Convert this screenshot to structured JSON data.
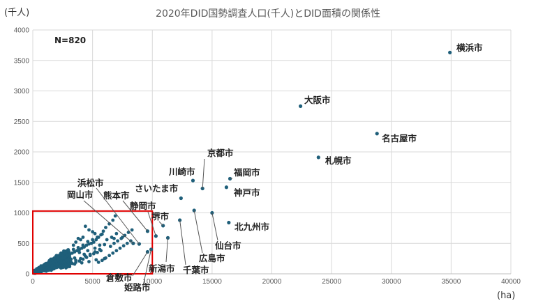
{
  "chart_data": {
    "type": "scatter",
    "title": "2020年DID国勢調査人口(千人)とDID面積の関係性",
    "ylabel_unit": "(千人)",
    "xlabel_unit": "(ha)",
    "annotation": "N=820",
    "xlim": [
      0,
      40000
    ],
    "ylim": [
      0,
      4000
    ],
    "xticks": [
      0,
      5000,
      10000,
      15000,
      20000,
      25000,
      30000,
      35000,
      40000
    ],
    "yticks": [
      0,
      500,
      1000,
      1500,
      2000,
      2500,
      3000,
      3500,
      4000
    ],
    "grid": true,
    "highlight_box": {
      "x": [
        0,
        10000
      ],
      "y": [
        0,
        1030
      ],
      "color": "#e00000"
    },
    "point_color": "#1f5f7a",
    "labeled_points": [
      {
        "name": "横浜市",
        "x": 34900,
        "y": 3630
      },
      {
        "name": "大阪市",
        "x": 22400,
        "y": 2750
      },
      {
        "name": "名古屋市",
        "x": 28800,
        "y": 2300
      },
      {
        "name": "札幌市",
        "x": 23900,
        "y": 1910
      },
      {
        "name": "京都市",
        "x": 14200,
        "y": 1400
      },
      {
        "name": "川崎市",
        "x": 13400,
        "y": 1530
      },
      {
        "name": "福岡市",
        "x": 16500,
        "y": 1560
      },
      {
        "name": "神戸市",
        "x": 16200,
        "y": 1420
      },
      {
        "name": "さいたま市",
        "x": 12400,
        "y": 1240
      },
      {
        "name": "北九州市",
        "x": 16400,
        "y": 840
      },
      {
        "name": "仙台市",
        "x": 15000,
        "y": 1000
      },
      {
        "name": "広島市",
        "x": 13500,
        "y": 1040
      },
      {
        "name": "千葉市",
        "x": 12300,
        "y": 880
      },
      {
        "name": "新潟市",
        "x": 11300,
        "y": 590
      },
      {
        "name": "堺市",
        "x": 10900,
        "y": 790
      },
      {
        "name": "静岡市",
        "x": 10300,
        "y": 620
      },
      {
        "name": "熊本市",
        "x": 9600,
        "y": 700
      },
      {
        "name": "浜松市",
        "x": 8900,
        "y": 490
      },
      {
        "name": "岡山市",
        "x": 8400,
        "y": 500
      },
      {
        "name": "倉敷市",
        "x": 9600,
        "y": 360
      },
      {
        "name": "姫路市",
        "x": 9900,
        "y": 400
      }
    ],
    "points": [
      [
        700,
        90
      ],
      [
        900,
        130
      ],
      [
        1100,
        150
      ],
      [
        1300,
        170
      ],
      [
        1500,
        180
      ],
      [
        1700,
        200
      ],
      [
        1900,
        210
      ],
      [
        2100,
        230
      ],
      [
        2300,
        250
      ],
      [
        2500,
        260
      ],
      [
        2700,
        280
      ],
      [
        2900,
        300
      ],
      [
        3100,
        320
      ],
      [
        3300,
        340
      ],
      [
        3500,
        360
      ],
      [
        3700,
        380
      ],
      [
        3900,
        400
      ],
      [
        4100,
        420
      ],
      [
        4300,
        440
      ],
      [
        4500,
        470
      ],
      [
        4700,
        490
      ],
      [
        4900,
        500
      ],
      [
        5100,
        520
      ],
      [
        5300,
        560
      ],
      [
        5500,
        600
      ],
      [
        5700,
        640
      ],
      [
        5900,
        700
      ],
      [
        6100,
        760
      ],
      [
        6400,
        820
      ],
      [
        6700,
        880
      ],
      [
        6900,
        950
      ],
      [
        4400,
        780
      ],
      [
        4700,
        720
      ],
      [
        5000,
        690
      ],
      [
        5200,
        660
      ],
      [
        3800,
        580
      ],
      [
        4000,
        560
      ],
      [
        4200,
        600
      ],
      [
        3600,
        520
      ],
      [
        3400,
        470
      ],
      [
        6100,
        260
      ],
      [
        6400,
        300
      ],
      [
        6700,
        340
      ],
      [
        7000,
        380
      ],
      [
        7300,
        420
      ],
      [
        7600,
        460
      ],
      [
        7900,
        500
      ],
      [
        8200,
        540
      ],
      [
        5800,
        220
      ],
      [
        5500,
        190
      ],
      [
        3000,
        150
      ],
      [
        3300,
        170
      ],
      [
        3600,
        190
      ],
      [
        3900,
        210
      ],
      [
        4200,
        240
      ],
      [
        4500,
        270
      ],
      [
        4800,
        300
      ],
      [
        5100,
        330
      ],
      [
        5400,
        350
      ],
      [
        5700,
        380
      ],
      [
        2000,
        110
      ],
      [
        2400,
        130
      ],
      [
        2800,
        160
      ],
      [
        3200,
        190
      ],
      [
        3600,
        220
      ],
      [
        4000,
        250
      ],
      [
        4400,
        290
      ],
      [
        4800,
        320
      ],
      [
        5200,
        360
      ],
      [
        5600,
        400
      ],
      [
        2200,
        300
      ],
      [
        2600,
        330
      ],
      [
        3000,
        370
      ],
      [
        3400,
        400
      ],
      [
        3800,
        430
      ],
      [
        4200,
        470
      ],
      [
        4600,
        530
      ],
      [
        5000,
        560
      ],
      [
        5400,
        600
      ],
      [
        5800,
        650
      ],
      [
        1500,
        240
      ],
      [
        1800,
        260
      ],
      [
        2100,
        280
      ],
      [
        2400,
        310
      ],
      [
        2700,
        340
      ],
      [
        1200,
        90
      ],
      [
        1600,
        120
      ],
      [
        2000,
        150
      ],
      [
        2600,
        200
      ],
      [
        3200,
        240
      ],
      [
        6500,
        450
      ],
      [
        6800,
        500
      ],
      [
        7100,
        540
      ],
      [
        7400,
        580
      ],
      [
        7700,
        630
      ],
      [
        8000,
        680
      ],
      [
        8300,
        720
      ],
      [
        6200,
        560
      ],
      [
        6600,
        600
      ],
      [
        7000,
        660
      ],
      [
        2800,
        220
      ],
      [
        3500,
        260
      ],
      [
        4300,
        320
      ],
      [
        5200,
        420
      ],
      [
        6000,
        480
      ],
      [
        6800,
        580
      ],
      [
        7500,
        600
      ],
      [
        3900,
        350
      ],
      [
        4600,
        380
      ],
      [
        5600,
        470
      ],
      [
        1000,
        60
      ],
      [
        1400,
        80
      ],
      [
        1800,
        100
      ],
      [
        2300,
        120
      ],
      [
        2900,
        140
      ],
      [
        3500,
        160
      ],
      [
        4100,
        180
      ],
      [
        4700,
        200
      ],
      [
        5300,
        230
      ],
      [
        6000,
        250
      ]
    ],
    "dense_cluster": {
      "x_max": 3000,
      "y_max": 250,
      "count": 600
    }
  }
}
